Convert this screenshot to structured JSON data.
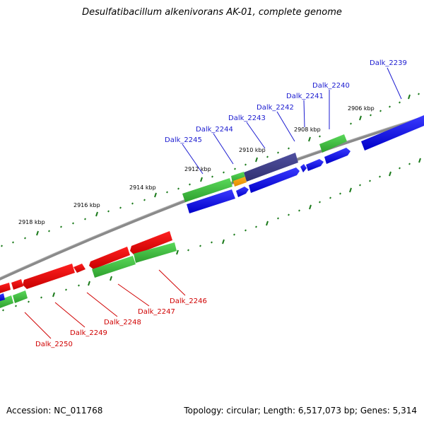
{
  "header": {
    "title": "Desulfatibacillum alkenivorans AK-01, complete genome"
  },
  "footer": {
    "accession": "Accession: NC_011768",
    "summary": "Topology: circular; Length: 6,517,073 bp; Genes: 5,314"
  },
  "ticks": {
    "t2906": "2906 kbp",
    "t2908": "2908 kbp",
    "t2910": "2910 kbp",
    "t2912": "2912 kbp",
    "t2914": "2914 kbp",
    "t2916": "2916 kbp",
    "t2918": "2918 kbp"
  },
  "genes_forward": {
    "g2239": "Dalk_2239",
    "g2240": "Dalk_2240",
    "g2241": "Dalk_2241",
    "g2242": "Dalk_2242",
    "g2243": "Dalk_2243",
    "g2244": "Dalk_2244",
    "g2245": "Dalk_2245"
  },
  "genes_reverse": {
    "g2246": "Dalk_2246",
    "g2247": "Dalk_2247",
    "g2248": "Dalk_2248",
    "g2249": "Dalk_2249",
    "g2250": "Dalk_2250"
  },
  "colors": {
    "forward_cds": "#1010e0",
    "reverse_cds": "#e00000",
    "rna_or_other": "#40c040",
    "dark_cds": "#404080",
    "orange_feature": "#f0a000",
    "backbone": "#808080",
    "tick_marks": "#1a7a1a",
    "forward_label": "#1a1ad0",
    "reverse_label": "#d00000"
  }
}
